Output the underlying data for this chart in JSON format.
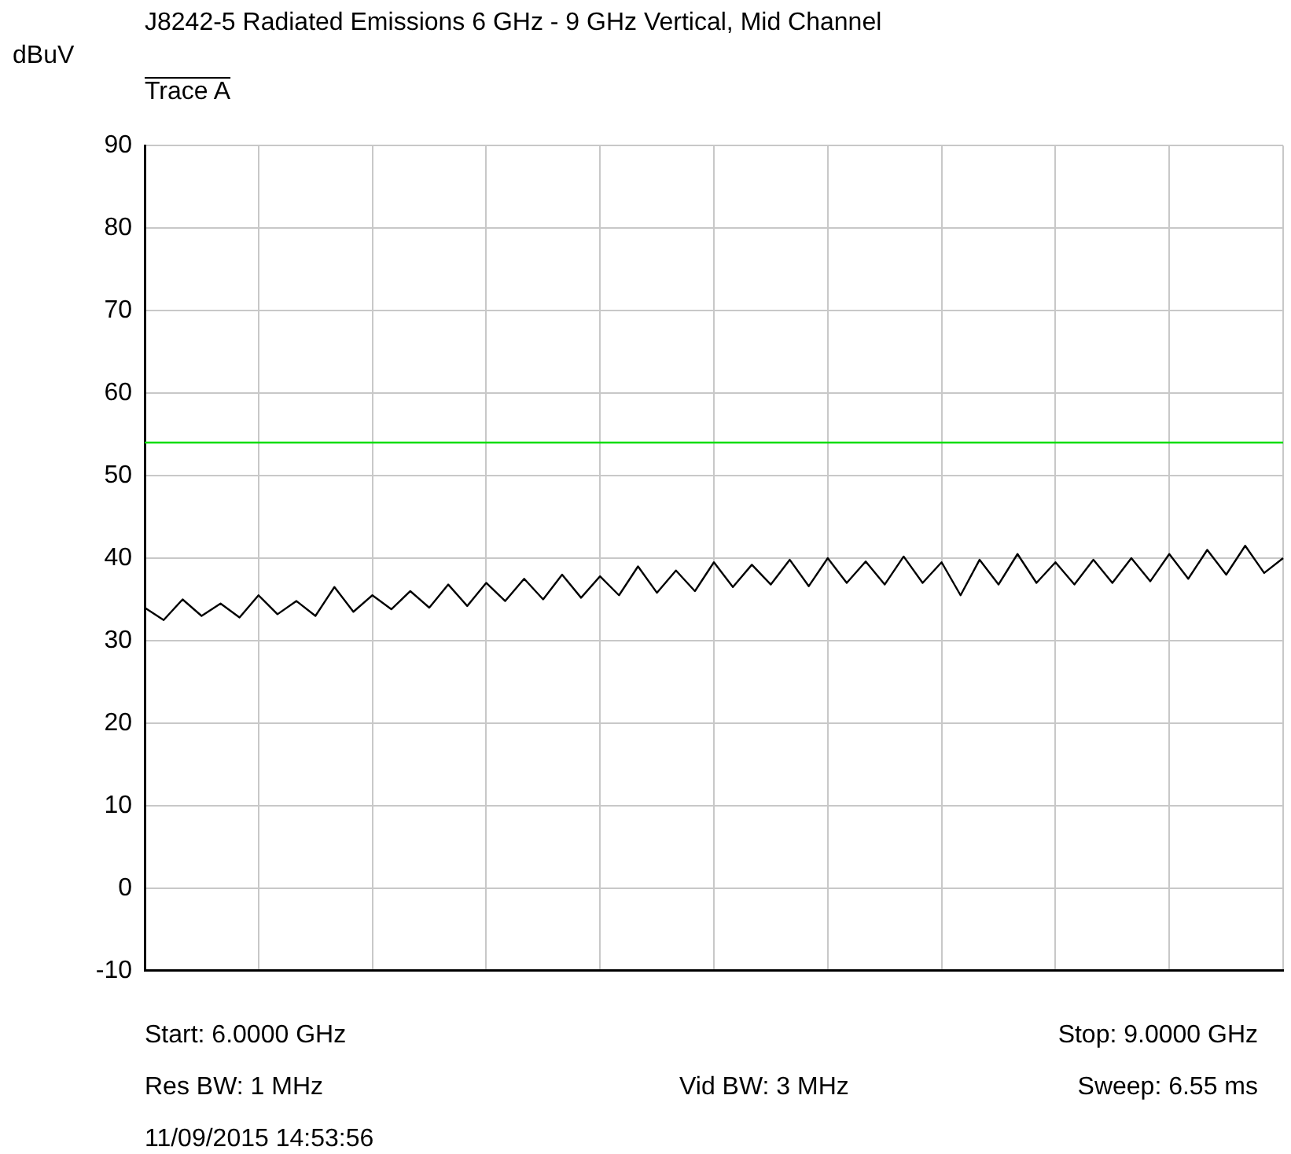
{
  "chart_data": {
    "type": "line",
    "title": "J8242-5 Radiated Emissions 6 GHz - 9 GHz Vertical, Mid Channel",
    "subtitle": "Trace A",
    "ylabel": "dBuV",
    "annotations": [
      "Start: 6.0000 GHz",
      "Stop: 9.0000 GHz",
      "Res BW: 1 MHz",
      "Vid BW: 3 MHz",
      "Sweep: 6.55 ms",
      "11/09/2015 14:53:56"
    ],
    "categories": [
      null,
      null,
      null,
      null,
      null,
      null,
      null,
      null,
      null,
      null,
      null,
      null,
      null,
      null,
      null,
      null,
      null,
      null,
      null,
      null,
      null,
      null,
      null,
      null,
      null,
      null,
      null,
      null,
      null,
      null,
      null,
      null,
      null,
      null,
      null,
      null,
      null,
      null,
      null,
      null,
      null,
      null,
      null,
      null,
      null,
      null,
      null,
      null,
      null,
      null,
      null,
      null,
      null,
      null,
      null,
      null,
      null,
      null,
      null,
      null,
      null
    ],
    "series": [
      {
        "color": "#000000",
        "values": [
          34,
          32.5,
          35,
          33,
          34.5,
          32.8,
          35.5,
          33.2,
          34.8,
          33,
          36.5,
          33.5,
          35.5,
          33.8,
          36,
          34,
          36.8,
          34.2,
          37,
          34.8,
          37.5,
          35,
          38,
          35.2,
          37.8,
          35.5,
          39,
          35.8,
          38.5,
          36,
          39.5,
          36.5,
          39.2,
          36.8,
          39.8,
          36.6,
          40,
          37,
          39.6,
          36.8,
          40.2,
          37,
          39.5,
          35.5,
          39.8,
          36.8,
          40.5,
          37,
          39.5,
          36.8,
          39.8,
          37,
          40,
          37.2,
          40.5,
          37.5,
          41,
          38,
          41.5,
          38.2,
          40
        ]
      }
    ],
    "ref_lines": [
      {
        "axis": "y",
        "value": 54,
        "color": "#00dd00"
      }
    ],
    "ylim": [
      -10,
      90
    ],
    "yticks": [
      -10,
      0,
      10,
      20,
      30,
      40,
      50,
      60,
      70,
      80,
      90
    ],
    "grid": true,
    "tick_labels": "y",
    "marker": "none"
  }
}
